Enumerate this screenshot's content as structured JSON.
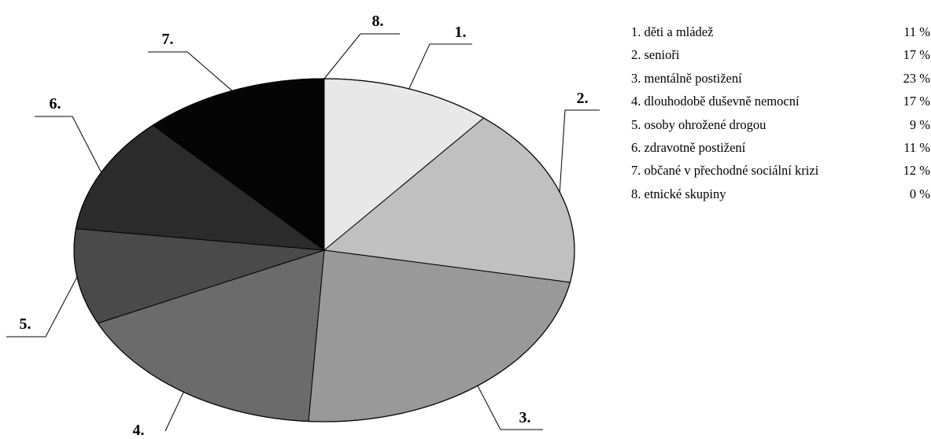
{
  "chart_data": {
    "type": "pie",
    "categories": [
      "děti a mládež",
      "senioři",
      "mentálně postižení",
      "dlouhodobě duševně nemocní",
      "osoby ohrožené drogou",
      "zdravotně postižení",
      "občané v přechodné sociální krizi",
      "etnické skupiny"
    ],
    "values": [
      11,
      17,
      23,
      17,
      9,
      11,
      12,
      0
    ],
    "slice_labels": [
      "1.",
      "2.",
      "3.",
      "4.",
      "5.",
      "6.",
      "7.",
      "8."
    ],
    "colors": [
      "#e8e8e8",
      "#c0c0c0",
      "#999999",
      "#6b6b6b",
      "#4a4a4a",
      "#2b2b2b",
      "#050505",
      "#ffffff"
    ],
    "legend": {
      "position": "right",
      "rows": [
        {
          "label": "1. děti a mládež",
          "value": "11 %"
        },
        {
          "label": "2. senioři",
          "value": "17 %"
        },
        {
          "label": "3. mentálně postižení",
          "value": "23 %"
        },
        {
          "label": "4. dlouhodobě duševně nemocní",
          "value": "17 %"
        },
        {
          "label": "5. osoby ohrožené drogou",
          "value": "9 %"
        },
        {
          "label": "6. zdravotně postižení",
          "value": "11 %"
        },
        {
          "label": "7. občané v přechodné sociální krizi",
          "value": "12 %"
        },
        {
          "label": "8. etnické skupiny",
          "value": "0 %"
        }
      ]
    }
  }
}
